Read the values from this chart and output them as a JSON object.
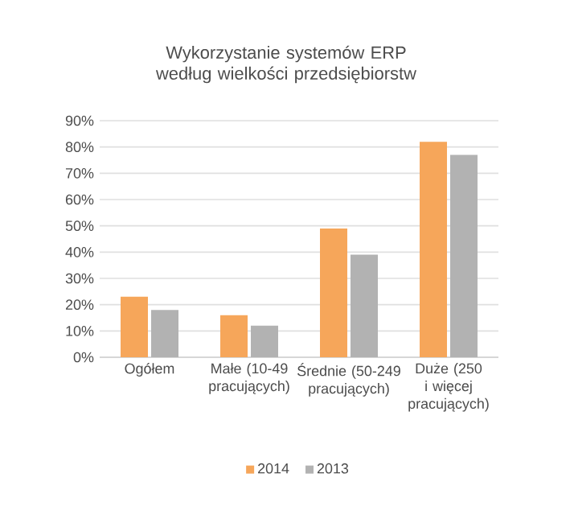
{
  "chart_data": {
    "type": "bar",
    "title": "Wykorzystanie systemów ERP według wielkości przedsiębiorstw",
    "categories": [
      "Ogółem",
      "Małe (10-49 pracujących)",
      "Średnie (50-249 pracujących)",
      "Duże (250 i więcej pracujących)"
    ],
    "series": [
      {
        "name": "2014",
        "color": "#f6a65a",
        "values": [
          23,
          16,
          49,
          82
        ]
      },
      {
        "name": "2013",
        "color": "#b2b2b2",
        "values": [
          18,
          12,
          39,
          77
        ]
      }
    ],
    "ylim": [
      0,
      90
    ],
    "yticks": [
      {
        "value": 0,
        "label": "0%"
      },
      {
        "value": 10,
        "label": "10%"
      },
      {
        "value": 20,
        "label": "20%"
      },
      {
        "value": 30,
        "label": "30%"
      },
      {
        "value": 40,
        "label": "40%"
      },
      {
        "value": 50,
        "label": "50%"
      },
      {
        "value": 60,
        "label": "60%"
      },
      {
        "value": 70,
        "label": "70%"
      },
      {
        "value": 80,
        "label": "80%"
      },
      {
        "value": 90,
        "label": "90%"
      }
    ],
    "grid": "y",
    "legend": "bottom"
  }
}
